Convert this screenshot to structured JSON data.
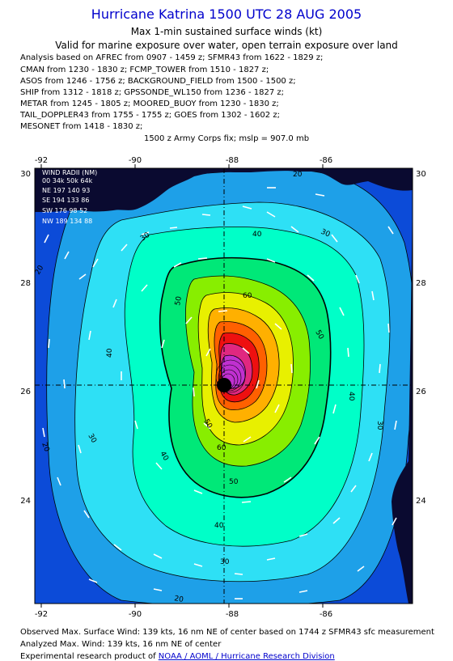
{
  "header": {
    "title": "Hurricane Katrina 1500 UTC 28 AUG 2005",
    "subtitle": "Max 1-min sustained surface winds (kt)",
    "validity": "Valid for marine exposure over water, open terrain exposure over land"
  },
  "analysis_lines": [
    "Analysis based on  AFREC from 0907 - 1459 z;  SFMR43 from 1622 - 1829 z;",
    "CMAN from 1230 - 1830 z;  FCMP_TOWER from 1510 - 1827 z;",
    "ASOS from 1246 - 1756 z;  BACKGROUND_FIELD from 1500 - 1500 z;",
    "SHIP from 1312 - 1818 z;  GPSSONDE_WL150 from 1236 - 1827 z;",
    "METAR from 1245 - 1805 z;  MOORED_BUOY from 1230 - 1830 z;",
    "TAIL_DOPPLER43 from 1755 - 1755 z;  GOES from 1302 - 1602 z;",
    "MESONET from 1418 - 1830 z;"
  ],
  "pressure_fix": "1500 z Army Corps fix; mslp = 907.0 mb",
  "map": {
    "lon_ticks": [
      "-92",
      "-90",
      "-88",
      "-86"
    ],
    "lat_ticks": [
      "30",
      "28",
      "26",
      "24"
    ],
    "contour_labels": [
      "20",
      "20",
      "20",
      "20",
      "30",
      "30",
      "30",
      "30",
      "30",
      "40",
      "40",
      "40",
      "40",
      "40",
      "50",
      "50",
      "50",
      "50",
      "60",
      "60"
    ],
    "storm_center": {
      "lon": -88.0,
      "lat": 26.1
    },
    "wind_radii_table": {
      "title": "WIND RADII (NM)",
      "header": "00  34k  50k  64k",
      "rows": [
        "NE 197  140  93",
        "SE 194  133  86",
        "SW 176   98  52",
        "NW 189  134  88"
      ]
    },
    "colors": {
      "ocean_20": "#0c4bd8",
      "ocean_30": "#1ea0e8",
      "ocean_40": "#2ee0f5",
      "ocean_45": "#00ffc8",
      "ocean_50": "#00e878",
      "ocean_60": "#88ee00",
      "ocean_70": "#e8f000",
      "ocean_80": "#ffb000",
      "ocean_90": "#ff6000",
      "ocean_100": "#ee1010",
      "ocean_110": "#e02880",
      "ocean_120": "#c030d0",
      "land": "#0a0a30"
    }
  },
  "footer": {
    "observed": "Observed Max. Surface Wind: 139 kts, 16 nm NE of center based on 1744 z SFMR43 sfc measurement",
    "analyzed": "Analyzed Max. Wind: 139 kts, 16 nm NE of center",
    "experimental_prefix": "Experimental research product of ",
    "link": "NOAA / AOML / Hurricane Research Division"
  }
}
